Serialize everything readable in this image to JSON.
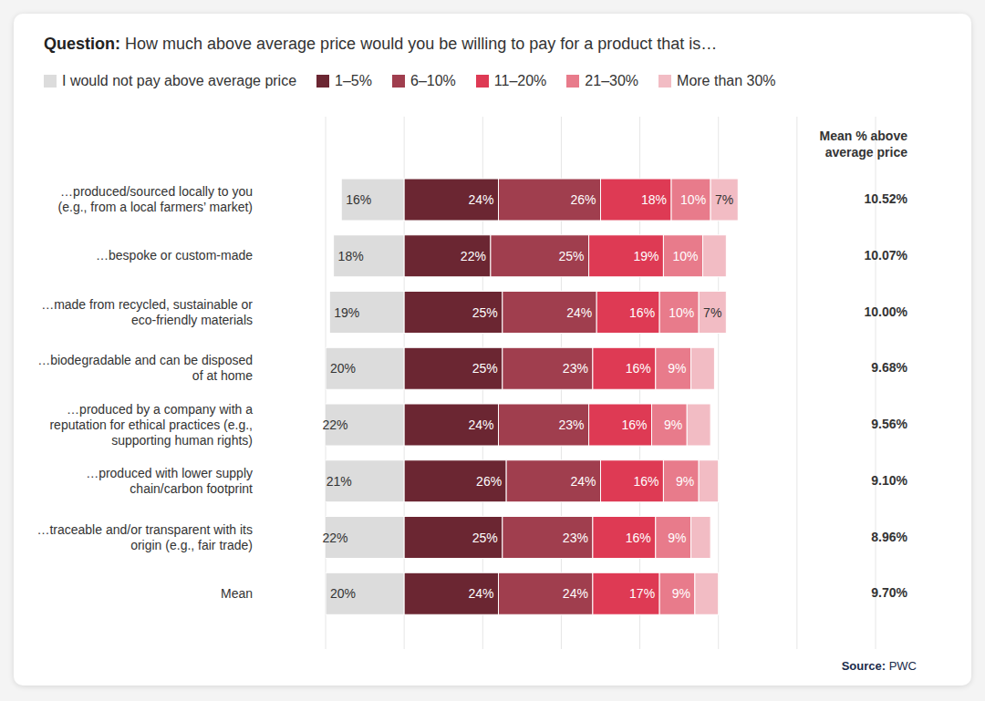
{
  "chart_data": {
    "type": "bar",
    "orientation": "horizontal",
    "stacked": true,
    "data_labels": true,
    "grid": true,
    "tick_labels": false,
    "legend": "top",
    "title": "Question: How much above average price would you be willing to pay for a product that is…",
    "categories": [
      "…produced/sourced locally to you (e.g., from a local farmers’ market)",
      "…bespoke or custom-made",
      "…made from recycled, sustainable or eco-friendly materials",
      "…biodegradable and can be disposed of at home",
      "…produced by a company with a reputation for ethical practices (e.g., supporting human rights)",
      "…produced with lower supply chain/carbon footprint",
      "…traceable and/or transparent with its origin (e.g., fair trade)",
      "Mean"
    ],
    "xlim": [
      -20,
      120
    ],
    "xticks": [
      -20,
      0,
      20,
      40,
      60,
      80,
      100,
      120
    ],
    "series": [
      {
        "name": "I would not pay above average price",
        "color": "#dcdcdc",
        "values": [
          16,
          18,
          19,
          20,
          22,
          21,
          22,
          20
        ],
        "value_labels": [
          "16%",
          "18%",
          "19%",
          "20%",
          "22%",
          "21%",
          "22%",
          "20%"
        ]
      },
      {
        "name": "1–5%",
        "color": "#6b2632",
        "values": [
          24,
          22,
          25,
          25,
          24,
          26,
          25,
          24
        ],
        "value_labels": [
          "24%",
          "22%",
          "25%",
          "25%",
          "24%",
          "26%",
          "25%",
          "24%"
        ]
      },
      {
        "name": "6–10%",
        "color": "#a03e4e",
        "values": [
          26,
          25,
          24,
          23,
          23,
          24,
          23,
          24
        ],
        "value_labels": [
          "26%",
          "25%",
          "24%",
          "23%",
          "23%",
          "24%",
          "23%",
          "24%"
        ]
      },
      {
        "name": "11–20%",
        "color": "#de3a54",
        "values": [
          18,
          19,
          16,
          16,
          16,
          16,
          16,
          17
        ],
        "value_labels": [
          "18%",
          "19%",
          "16%",
          "16%",
          "16%",
          "16%",
          "16%",
          "17%"
        ]
      },
      {
        "name": "21–30%",
        "color": "#e87b8b",
        "values": [
          10,
          10,
          10,
          9,
          9,
          9,
          9,
          9
        ],
        "value_labels": [
          "10%",
          "10%",
          "10%",
          "9%",
          "9%",
          "9%",
          "9%",
          "9%"
        ]
      },
      {
        "name": "More than 30%",
        "color": "#f2bcc4",
        "values": [
          7,
          6,
          7,
          6,
          6,
          5,
          5,
          6
        ],
        "value_labels": [
          "7%",
          null,
          "7%",
          null,
          null,
          null,
          null,
          null
        ]
      }
    ],
    "means_title": "Mean % above average price",
    "means": [
      10.52,
      10.07,
      10.0,
      9.68,
      9.56,
      9.1,
      8.96,
      9.7
    ],
    "means_labels": [
      "10.52%",
      "10.07%",
      "10.00%",
      "9.68%",
      "9.56%",
      "9.10%",
      "8.96%",
      "9.70%"
    ],
    "source": "Source: PWC"
  }
}
